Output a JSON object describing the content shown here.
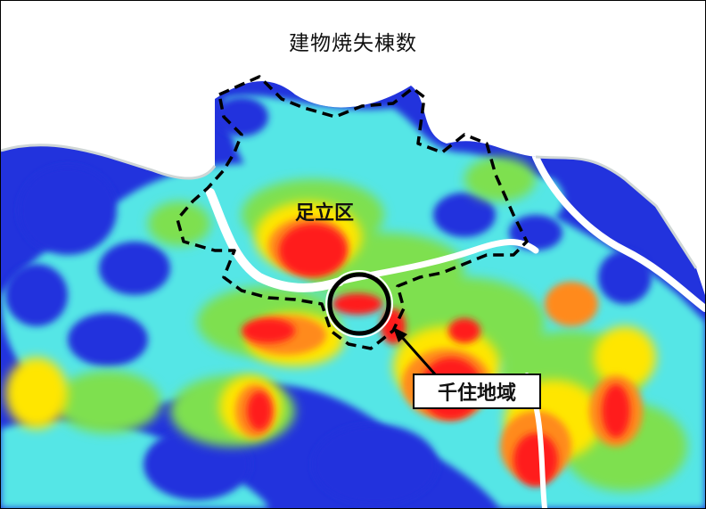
{
  "title": "建物焼失棟数",
  "labels": {
    "ward": "足立区",
    "callout": "千住地域"
  },
  "colors": {
    "low": "#2233dd",
    "low_mid": "#55e6e6",
    "mid": "#7ee050",
    "high_mid": "#ffe600",
    "high": "#ff8a1c",
    "highest": "#ff1f1f",
    "river": "#ffffff",
    "boundary": "#000000"
  }
}
